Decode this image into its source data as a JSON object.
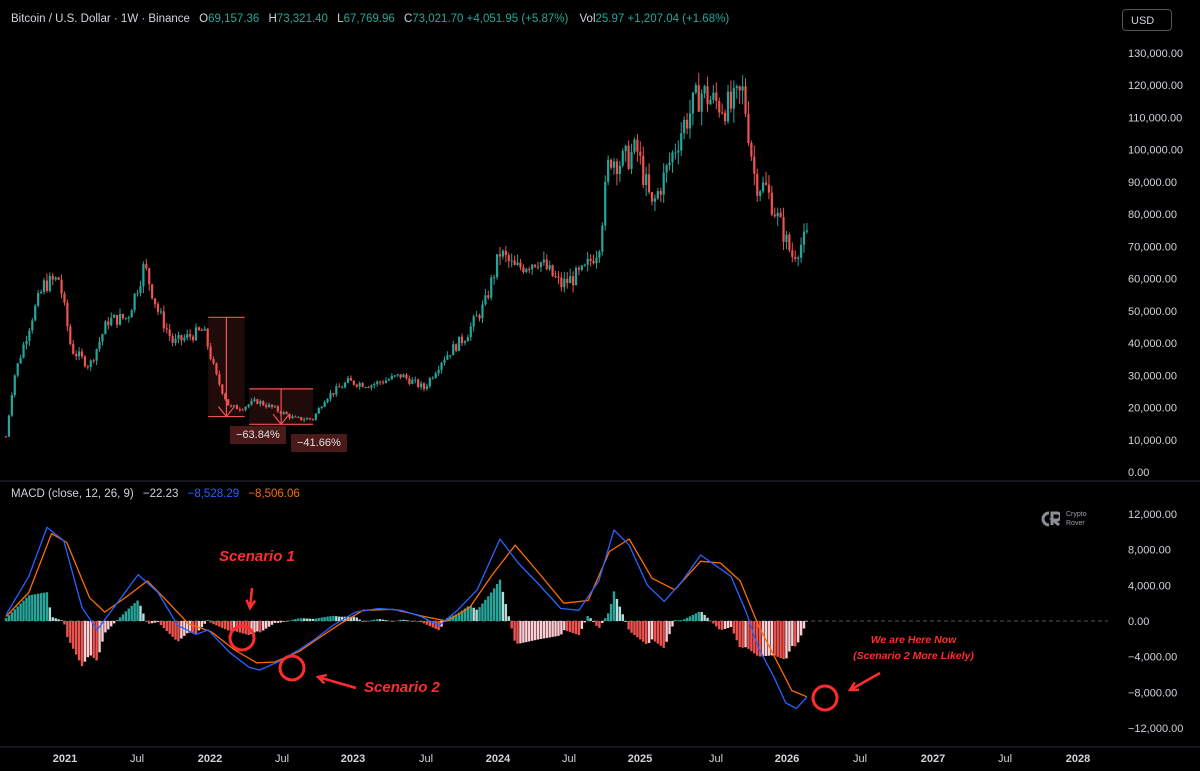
{
  "header": {
    "symbol": "Bitcoin / U.S. Dollar · 1W · Binance",
    "open_label": "O",
    "open": "69,157.36",
    "high_label": "H",
    "high": "73,321.40",
    "low_label": "L",
    "low": "67,769.96",
    "close_label": "C",
    "close": "73,021.70",
    "change": "+4,051.95 (+5.87%)",
    "vol_label": "Vol",
    "vol": "25.97",
    "vol_change": "+1,207.04 (+1.68%)"
  },
  "currency_button": "USD",
  "macd_header": {
    "title": "MACD (close, 12, 26, 9)",
    "histogram": "−22.23",
    "macd": "−8,528.29",
    "signal": "−8,506.06"
  },
  "watermark": {
    "line1": "Crypto",
    "line2": "Rover"
  },
  "annotations": {
    "scenario1": "Scenario 1",
    "scenario2": "Scenario 2",
    "now_line1": "We are Here Now",
    "now_line2": "(Scenario 2 More Likely)",
    "drawdown1": "−63.84%",
    "drawdown2": "−41.66%"
  },
  "colors": {
    "up": "#26a69a",
    "down": "#ef5350",
    "macd_line": "#2962ff",
    "signal_line": "#ff6d00",
    "annotation": "#ff2d2d"
  },
  "chart_data": [
    {
      "type": "candlestick",
      "title": "Bitcoin / U.S. Dollar · 1W · Binance",
      "y_ticks": [
        "130,000.00",
        "120,000.00",
        "110,000.00",
        "100,000.00",
        "90,000.00",
        "80,000.00",
        "70,000.00",
        "60,000.00",
        "50,000.00",
        "40,000.00",
        "30,000.00",
        "20,000.00",
        "10,000.00",
        "0.00"
      ],
      "x_ticks": [
        "2021",
        "Jul",
        "2022",
        "Jul",
        "2023",
        "Jul",
        "2024",
        "Jul",
        "2025",
        "Jul",
        "2026",
        "Jul",
        "2027",
        "Jul",
        "2028"
      ],
      "ylim": [
        0,
        130000
      ],
      "xlim": [
        2020.95,
        2028.2
      ],
      "price_path": [
        [
          2020.95,
          11000
        ],
        [
          2021.0,
          29000
        ],
        [
          2021.12,
          48000
        ],
        [
          2021.2,
          58000
        ],
        [
          2021.3,
          60000
        ],
        [
          2021.38,
          38000
        ],
        [
          2021.5,
          33000
        ],
        [
          2021.62,
          47000
        ],
        [
          2021.75,
          48000
        ],
        [
          2021.86,
          64000
        ],
        [
          2021.95,
          50000
        ],
        [
          2022.05,
          40000
        ],
        [
          2022.15,
          42000
        ],
        [
          2022.25,
          44000
        ],
        [
          2022.33,
          30000
        ],
        [
          2022.42,
          20000
        ],
        [
          2022.5,
          20000
        ],
        [
          2022.6,
          22000
        ],
        [
          2022.7,
          20000
        ],
        [
          2022.85,
          16500
        ],
        [
          2022.97,
          16500
        ],
        [
          2023.05,
          23000
        ],
        [
          2023.2,
          28000
        ],
        [
          2023.35,
          27000
        ],
        [
          2023.55,
          30000
        ],
        [
          2023.7,
          26000
        ],
        [
          2023.82,
          35000
        ],
        [
          2023.97,
          42000
        ],
        [
          2024.1,
          52000
        ],
        [
          2024.2,
          68000
        ],
        [
          2024.3,
          63000
        ],
        [
          2024.45,
          66000
        ],
        [
          2024.6,
          58000
        ],
        [
          2024.75,
          62000
        ],
        [
          2024.85,
          70000
        ],
        [
          2024.92,
          98000
        ],
        [
          2025.0,
          96000
        ],
        [
          2025.1,
          100000
        ],
        [
          2025.2,
          82000
        ],
        [
          2025.3,
          94000
        ],
        [
          2025.4,
          107000
        ],
        [
          2025.52,
          118000
        ],
        [
          2025.6,
          115000
        ],
        [
          2025.72,
          113000
        ],
        [
          2025.8,
          118000
        ],
        [
          2025.88,
          90000
        ],
        [
          2025.95,
          88000
        ],
        [
          2026.05,
          76000
        ],
        [
          2026.12,
          67000
        ],
        [
          2026.22,
          73000
        ]
      ]
    },
    {
      "type": "line",
      "title": "MACD (close, 12, 26, 9)",
      "y_ticks": [
        "12,000.00",
        "8,000.00",
        "4,000.00",
        "0.00",
        "−4,000.00",
        "−8,000.00",
        "−12,000.00"
      ],
      "ylim": [
        -12000,
        12000
      ],
      "series": [
        {
          "name": "MACD",
          "points": [
            [
              2020.95,
              700
            ],
            [
              2021.1,
              5000
            ],
            [
              2021.22,
              10500
            ],
            [
              2021.33,
              9000
            ],
            [
              2021.45,
              1500
            ],
            [
              2021.55,
              -1000
            ],
            [
              2021.68,
              2000
            ],
            [
              2021.82,
              5200
            ],
            [
              2021.95,
              3200
            ],
            [
              2022.08,
              -500
            ],
            [
              2022.2,
              -1500
            ],
            [
              2022.28,
              -1000
            ],
            [
              2022.42,
              -3500
            ],
            [
              2022.55,
              -5200
            ],
            [
              2022.62,
              -5500
            ],
            [
              2022.75,
              -4500
            ],
            [
              2022.88,
              -3200
            ],
            [
              2022.97,
              -2200
            ],
            [
              2023.1,
              -500
            ],
            [
              2023.25,
              1000
            ],
            [
              2023.4,
              1400
            ],
            [
              2023.55,
              1200
            ],
            [
              2023.68,
              500
            ],
            [
              2023.8,
              -500
            ],
            [
              2023.92,
              1200
            ],
            [
              2024.05,
              3500
            ],
            [
              2024.2,
              9200
            ],
            [
              2024.32,
              6500
            ],
            [
              2024.45,
              4200
            ],
            [
              2024.6,
              1400
            ],
            [
              2024.72,
              1200
            ],
            [
              2024.85,
              4500
            ],
            [
              2024.95,
              10200
            ],
            [
              2025.05,
              8500
            ],
            [
              2025.17,
              4000
            ],
            [
              2025.28,
              2200
            ],
            [
              2025.4,
              4500
            ],
            [
              2025.52,
              7400
            ],
            [
              2025.62,
              6200
            ],
            [
              2025.72,
              5000
            ],
            [
              2025.82,
              1000
            ],
            [
              2025.9,
              -3000
            ],
            [
              2026.0,
              -6200
            ],
            [
              2026.08,
              -9200
            ],
            [
              2026.15,
              -9800
            ],
            [
              2026.22,
              -8528
            ]
          ]
        },
        {
          "name": "Signal",
          "points": [
            [
              2020.95,
              500
            ],
            [
              2021.1,
              3200
            ],
            [
              2021.25,
              9800
            ],
            [
              2021.35,
              8800
            ],
            [
              2021.5,
              2600
            ],
            [
              2021.6,
              1000
            ],
            [
              2021.75,
              2800
            ],
            [
              2021.88,
              4500
            ],
            [
              2022.0,
              2400
            ],
            [
              2022.15,
              -300
            ],
            [
              2022.3,
              -1200
            ],
            [
              2022.45,
              -3200
            ],
            [
              2022.6,
              -4700
            ],
            [
              2022.72,
              -4600
            ],
            [
              2022.88,
              -3400
            ],
            [
              2023.0,
              -2000
            ],
            [
              2023.15,
              -300
            ],
            [
              2023.3,
              1200
            ],
            [
              2023.5,
              1300
            ],
            [
              2023.7,
              500
            ],
            [
              2023.85,
              0
            ],
            [
              2024.0,
              1500
            ],
            [
              2024.15,
              5200
            ],
            [
              2024.3,
              8500
            ],
            [
              2024.45,
              5500
            ],
            [
              2024.62,
              2000
            ],
            [
              2024.78,
              2300
            ],
            [
              2024.92,
              7800
            ],
            [
              2025.05,
              9200
            ],
            [
              2025.2,
              4800
            ],
            [
              2025.35,
              3500
            ],
            [
              2025.52,
              6700
            ],
            [
              2025.65,
              6500
            ],
            [
              2025.78,
              4500
            ],
            [
              2025.9,
              -500
            ],
            [
              2026.0,
              -3800
            ],
            [
              2026.12,
              -7800
            ],
            [
              2026.22,
              -8506
            ]
          ]
        }
      ]
    }
  ]
}
